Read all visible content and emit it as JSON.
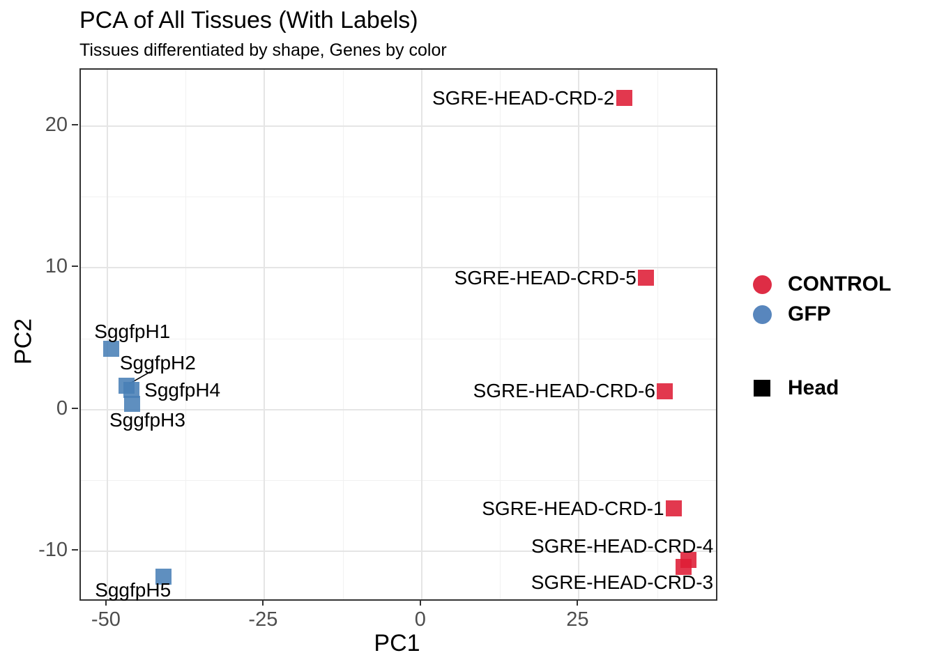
{
  "title": "PCA of All Tissues (With Labels)",
  "subtitle": "Tissues differentiated by shape, Genes by color",
  "chart_data": {
    "type": "scatter",
    "title": "PCA of All Tissues (With Labels)",
    "subtitle": "Tissues differentiated by shape, Genes by color",
    "xlabel": "PC1",
    "ylabel": "PC2",
    "xlim": [
      -54.2,
      46.8
    ],
    "ylim": [
      -13.4,
      24.0
    ],
    "x_major_ticks": [
      -50,
      -25,
      0,
      25
    ],
    "x_minor_ticks": [
      -37.5,
      -12.5,
      12.5,
      37.5
    ],
    "y_major_ticks": [
      20,
      10,
      0,
      -10
    ],
    "y_minor_ticks": [
      15,
      5,
      -5
    ],
    "grid": "major+minor",
    "legend_position": "right",
    "point_shape": "square",
    "colors": {
      "control": "#DE2D45",
      "gfp": "#5886BD",
      "head_shape": "#000000",
      "grid_major": "#E5E5E5",
      "grid_minor": "#F1F1F1",
      "panel_border": "#333333",
      "tick_text": "#4D4D4D"
    },
    "series": [
      {
        "name": "CONTROL",
        "legend_marker": "circle",
        "color": "#DE2D45",
        "fill_rgba": "rgba(222,28,53,0.88)",
        "points": [
          {
            "label": "SGRE-HEAD-CRD-1",
            "x": 40.1,
            "y": -7.0,
            "label_anchor": "end",
            "label_dx": -14,
            "label_dy": 0
          },
          {
            "label": "SGRE-HEAD-CRD-2",
            "x": 32.2,
            "y": 22.0,
            "label_anchor": "end",
            "label_dx": -14,
            "label_dy": 0
          },
          {
            "label": "SGRE-HEAD-CRD-3",
            "x": 41.6,
            "y": -11.1,
            "label_anchor": "end",
            "label_dx": 43,
            "label_dy": 23
          },
          {
            "label": "SGRE-HEAD-CRD-4",
            "x": 42.4,
            "y": -10.6,
            "label_anchor": "end",
            "label_dx": 36,
            "label_dy": -19
          },
          {
            "label": "SGRE-HEAD-CRD-5",
            "x": 35.7,
            "y": 9.3,
            "label_anchor": "end",
            "label_dx": -14,
            "label_dy": 0
          },
          {
            "label": "SGRE-HEAD-CRD-6",
            "x": 38.7,
            "y": 1.3,
            "label_anchor": "end",
            "label_dx": -14,
            "label_dy": 0
          }
        ]
      },
      {
        "name": "GFP",
        "legend_marker": "circle",
        "color": "#5886BD",
        "fill_rgba": "rgba(73,127,182,0.88)",
        "points": [
          {
            "label": "SggfpH1",
            "x": -49.4,
            "y": 4.3,
            "label_anchor": "start",
            "label_dx": -24,
            "label_dy": -24
          },
          {
            "label": "SggfpH2",
            "x": -46.9,
            "y": 1.7,
            "label_anchor": "start",
            "label_dx": -10,
            "label_dy": -32
          },
          {
            "label": "SggfpH4",
            "x": -46.2,
            "y": 1.4,
            "label_anchor": "start",
            "label_dx": 19,
            "label_dy": 1
          },
          {
            "label": "SggfpH3",
            "x": -46.0,
            "y": 0.4,
            "label_anchor": "start",
            "label_dx": -33,
            "label_dy": 23
          },
          {
            "label": "SggfpH5",
            "x": -41.1,
            "y": -11.8,
            "label_anchor": "end",
            "label_dx": 11,
            "label_dy": 20
          }
        ]
      }
    ],
    "shape_legend": [
      {
        "label": "Head",
        "marker": "square",
        "color": "#000000"
      }
    ],
    "annotation_segments": [
      {
        "x1": -43.2,
        "y1": 2.66,
        "x2": -46.5,
        "y2": 1.82
      }
    ]
  }
}
